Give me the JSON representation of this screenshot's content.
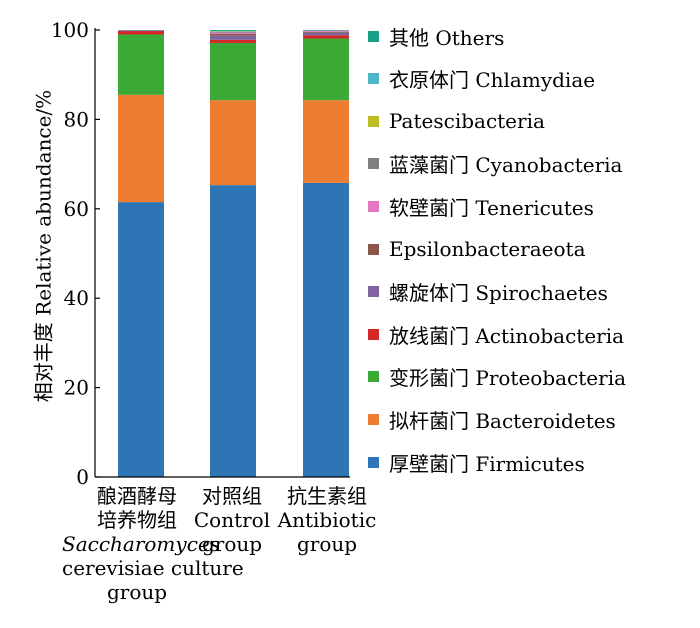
{
  "chart_data": {
    "type": "bar",
    "stacked": true,
    "ylabel": "相对丰度 Relative abundance/%",
    "ylim": [
      0,
      100
    ],
    "yticks": [
      0,
      20,
      40,
      60,
      80,
      100
    ],
    "categories": [
      {
        "lines": [
          "酿酒酵母",
          "培养物组"
        ],
        "italic": "Saccharomyces",
        "rest": [
          "cerevisiae culture",
          "group"
        ]
      },
      {
        "lines": [
          "对照组",
          "Control",
          "group"
        ]
      },
      {
        "lines": [
          "抗生素组",
          "Antibiotic",
          "group"
        ]
      }
    ],
    "series": [
      {
        "name": "厚壁菌门 Firmicutes",
        "color": "#2e75b6",
        "values": [
          61.5,
          65.3,
          65.8
        ]
      },
      {
        "name": "拟杆菌门 Bacteroidetes",
        "color": "#ed7d31",
        "values": [
          24.0,
          19.0,
          18.5
        ]
      },
      {
        "name": "变形菌门 Proteobacteria",
        "color": "#3aa935",
        "values": [
          13.5,
          12.8,
          13.8
        ]
      },
      {
        "name": "放线菌门 Actinobacteria",
        "color": "#d62728",
        "values": [
          0.8,
          0.7,
          0.7
        ]
      },
      {
        "name": "螺旋体门 Spirochaetes",
        "color": "#8064a2",
        "values": [
          0.05,
          0.9,
          0.6
        ]
      },
      {
        "name": "Epsilonbacteraeota",
        "color": "#8c564b",
        "values": [
          0.05,
          0.4,
          0.2
        ]
      },
      {
        "name": "软壁菌门 Tenericutes",
        "color": "#e377c2",
        "values": [
          0.05,
          0.3,
          0.2
        ]
      },
      {
        "name": "蓝藻菌门 Cyanobacteria",
        "color": "#7f7f7f",
        "values": [
          0.02,
          0.2,
          0.1
        ]
      },
      {
        "name": "Patescibacteria",
        "color": "#bcbd22",
        "values": [
          0.02,
          0.1,
          0.05
        ]
      },
      {
        "name": "衣原体门 Chlamydiae",
        "color": "#4fb5c9",
        "values": [
          0.01,
          0.1,
          0.05
        ]
      },
      {
        "name": "其他 Others",
        "color": "#17a085",
        "values": [
          0.0,
          0.2,
          0.0
        ]
      }
    ],
    "legend_position": "right",
    "legend_order": [
      "其他 Others",
      "衣原体门 Chlamydiae",
      "Patescibacteria",
      "蓝藻菌门 Cyanobacteria",
      "软壁菌门 Tenericutes",
      "Epsilonbacteraeota",
      "螺旋体门 Spirochaetes",
      "放线菌门 Actinobacteria",
      "变形菌门 Proteobacteria",
      "拟杆菌门 Bacteroidetes",
      "厚壁菌门 Firmicutes"
    ],
    "grid": false
  }
}
